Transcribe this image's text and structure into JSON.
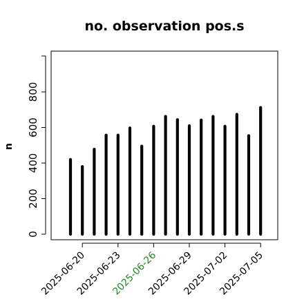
{
  "chart_data": {
    "type": "bar",
    "title": "no. observation pos.s",
    "ylabel": "n",
    "xlabel": "",
    "ylim": [
      0,
      950
    ],
    "yticks": [
      0,
      200,
      400,
      600,
      800
    ],
    "tick_labels": [
      {
        "date": "2025-06-20",
        "label": "2025-06-20",
        "color": "#000000"
      },
      {
        "date": "2025-06-23",
        "label": "2025-06-23",
        "color": "#000000"
      },
      {
        "date": "2025-06-26",
        "label": "2025-06-26",
        "color": "#228B22"
      },
      {
        "date": "2025-06-29",
        "label": "2025-06-29",
        "color": "#000000"
      },
      {
        "date": "2025-07-02",
        "label": "2025-07-02",
        "color": "#000000"
      },
      {
        "date": "2025-07-05",
        "label": "2025-07-05",
        "color": "#000000"
      }
    ],
    "categories": [
      "2025-06-19",
      "2025-06-20",
      "2025-06-21",
      "2025-06-22",
      "2025-06-23",
      "2025-06-24",
      "2025-06-25",
      "2025-06-26",
      "2025-06-27",
      "2025-06-28",
      "2025-06-29",
      "2025-06-30",
      "2025-07-01",
      "2025-07-02",
      "2025-07-03",
      "2025-07-04",
      "2025-07-05"
    ],
    "values": [
      420,
      380,
      478,
      557,
      557,
      597,
      495,
      607,
      662,
      644,
      610,
      642,
      662,
      607,
      674,
      554,
      712
    ],
    "bar_color": "#000000",
    "grid": false
  }
}
